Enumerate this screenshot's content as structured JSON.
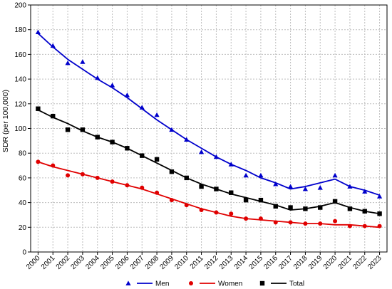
{
  "chart_data": {
    "type": "scatter",
    "title": "",
    "xlabel": "",
    "ylabel": "SDR (per 100,000)",
    "ylim": [
      0,
      200
    ],
    "yticks": [
      0,
      20,
      40,
      60,
      80,
      100,
      120,
      140,
      160,
      180,
      200
    ],
    "grid": true,
    "legend_position": "bottom-center",
    "categories": [
      "2000",
      "2001",
      "2002",
      "2003",
      "2004",
      "2005",
      "2006",
      "2007",
      "2008",
      "2009",
      "2010",
      "2011",
      "2012",
      "2013",
      "2014",
      "2015",
      "2016",
      "2017",
      "2018",
      "2019",
      "2020",
      "2021",
      "2022",
      "2023"
    ],
    "series": [
      {
        "name": "Men",
        "color": "#0000cc",
        "marker": "triangle",
        "values": [
          178,
          167,
          153,
          154,
          141,
          135,
          127,
          117,
          111,
          99,
          91,
          81,
          77,
          71,
          62,
          62,
          55,
          53,
          51,
          52,
          62,
          53,
          49,
          45
        ],
        "trend": [
          177,
          166,
          156,
          148,
          140,
          133,
          125,
          116,
          107,
          99,
          91,
          84,
          77,
          71,
          66,
          60,
          56,
          51,
          53,
          56,
          59,
          53,
          50,
          46
        ]
      },
      {
        "name": "Women",
        "color": "#e00000",
        "marker": "circle",
        "values": [
          73,
          70,
          62,
          63,
          60,
          57,
          54,
          52,
          48,
          42,
          38,
          34,
          32,
          31,
          27,
          27,
          24,
          24,
          23,
          23,
          25,
          21,
          21,
          21
        ],
        "trend": [
          73,
          69,
          66,
          63,
          60,
          57,
          54,
          51,
          47,
          43,
          39,
          35,
          32,
          29,
          27,
          26,
          25,
          24,
          23,
          23,
          22,
          22,
          21,
          20
        ]
      },
      {
        "name": "Total",
        "color": "#000000",
        "marker": "square",
        "values": [
          116,
          110,
          99,
          99,
          93,
          89,
          84,
          78,
          75,
          65,
          60,
          53,
          51,
          48,
          42,
          42,
          37,
          36,
          35,
          36,
          41,
          35,
          33,
          31
        ],
        "trend": [
          115,
          109,
          104,
          98,
          93,
          89,
          84,
          78,
          72,
          66,
          60,
          55,
          51,
          47,
          44,
          41,
          38,
          34,
          35,
          37,
          40,
          36,
          33,
          31
        ]
      }
    ]
  }
}
